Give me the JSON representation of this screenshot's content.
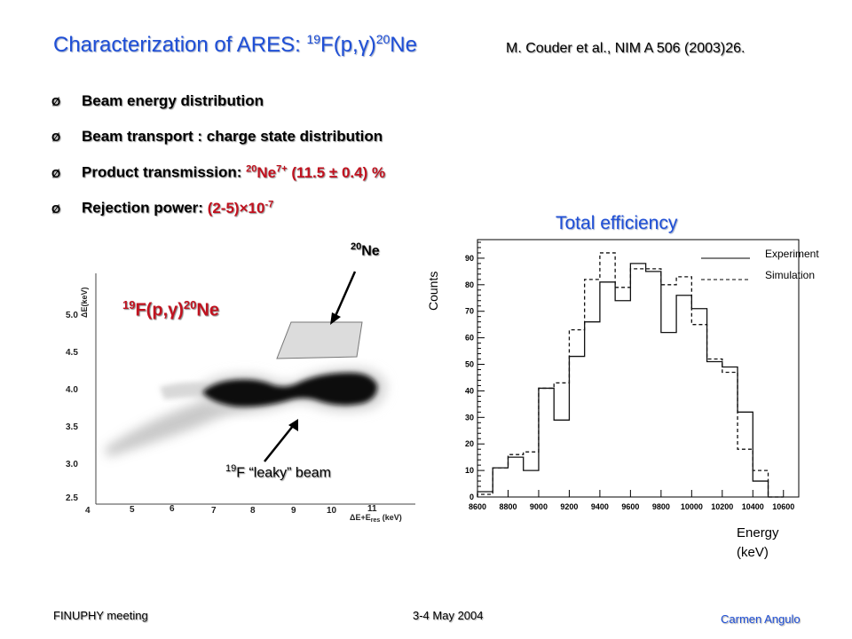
{
  "slide": {
    "title": "Characterization of ARES: ",
    "title_iso_f": "19",
    "title_f": "F(p,",
    "title_gamma": "γ",
    "title_close": ")",
    "title_iso_ne": "20",
    "title_ne": "Ne",
    "reference": "M. Couder et al., NIM A 506 (2003)26.",
    "bullet_marker": "Ø",
    "bullets": [
      {
        "text": "Beam energy distribution"
      },
      {
        "text": "Beam transport : charge state distribution"
      },
      {
        "text": "Product transmission: ",
        "iso": "20",
        "species": "Ne",
        "charge": "7+",
        "value": " (11.5 ± 0.4) %"
      },
      {
        "text": "Rejection power: ",
        "value": "(2-5)",
        "times": "×",
        "base": "10",
        "exp": "-7"
      }
    ]
  },
  "left_plot": {
    "ylabel": "ΔE(keV)",
    "xlabel": "ΔE+E",
    "xlabel_sub": "res",
    "xlabel_unit": " (keV)",
    "yticks": [
      "5.0",
      "4.5",
      "4.0",
      "3.5",
      "3.0",
      "2.5"
    ],
    "xticks": [
      "4",
      "5",
      "6",
      "7",
      "8",
      "9",
      "10",
      "11"
    ],
    "ne_label_iso": "20",
    "ne_label": "Ne",
    "reaction_iso_f": "19",
    "reaction_f": "F(p,",
    "reaction_gamma": "γ",
    "reaction_close": ")",
    "reaction_iso_ne": "20",
    "reaction_ne": "Ne",
    "leaky_iso": "19",
    "leaky_text": "F “leaky” beam"
  },
  "right_plot": {
    "title": "Total efficiency",
    "ylabel": "Counts",
    "xlabel_line1": "Energy",
    "xlabel_line2": "(keV)",
    "legend": [
      {
        "label": "Experiment",
        "style": "solid"
      },
      {
        "label": "Simulation",
        "style": "dashed"
      }
    ]
  },
  "chart_data": {
    "type": "histogram",
    "x": [
      8600,
      8700,
      8800,
      8900,
      9000,
      9100,
      9200,
      9300,
      9400,
      9500,
      9600,
      9700,
      9800,
      9900,
      10000,
      10100,
      10200,
      10300,
      10400,
      10500
    ],
    "series": [
      {
        "name": "Experiment",
        "values": [
          2,
          11,
          15,
          10,
          41,
          29,
          53,
          66,
          81,
          74,
          88,
          85,
          62,
          76,
          71,
          51,
          49,
          32,
          6,
          0
        ]
      },
      {
        "name": "Simulation",
        "values": [
          1,
          11,
          16,
          17,
          41,
          43,
          63,
          82,
          92,
          79,
          86,
          86,
          80,
          83,
          65,
          52,
          47,
          18,
          10,
          0
        ]
      }
    ],
    "xlim": [
      8600,
      10700
    ],
    "ylim": [
      0,
      97
    ],
    "xticks": [
      8600,
      8800,
      9000,
      9200,
      9400,
      9600,
      9800,
      10000,
      10200,
      10400,
      10600
    ],
    "yticks": [
      0,
      10,
      20,
      30,
      40,
      50,
      60,
      70,
      80,
      90
    ],
    "grid": false
  },
  "footer": {
    "meeting": "FINUPHY meeting",
    "date": "3-4 May 2004",
    "author": "Carmen Angulo"
  },
  "colors": {
    "title_blue": "#1f4fd6",
    "accent_red": "#c1121f"
  }
}
